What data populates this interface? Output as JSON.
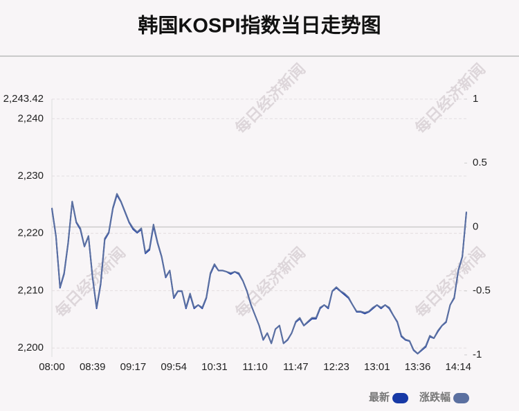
{
  "chart_data": {
    "type": "line",
    "title": "韩国KOSPI指数当日走势图",
    "watermark": "每日经济新闻",
    "categories": [
      "08:00",
      null,
      null,
      null,
      null,
      null,
      null,
      null,
      null,
      null,
      "08:39",
      null,
      null,
      null,
      null,
      null,
      null,
      null,
      null,
      null,
      "09:17",
      null,
      null,
      null,
      null,
      null,
      null,
      null,
      null,
      null,
      "09:54",
      null,
      null,
      null,
      null,
      null,
      null,
      null,
      null,
      null,
      "10:31",
      null,
      null,
      null,
      null,
      null,
      null,
      null,
      null,
      null,
      "11:10",
      null,
      null,
      null,
      null,
      null,
      null,
      null,
      null,
      null,
      "11:47",
      null,
      null,
      null,
      null,
      null,
      null,
      null,
      null,
      null,
      "12:23",
      null,
      null,
      null,
      null,
      null,
      null,
      null,
      null,
      null,
      "13:01",
      null,
      null,
      null,
      null,
      null,
      null,
      null,
      null,
      null,
      "13:36",
      null,
      null,
      null,
      null,
      null,
      null,
      null,
      null,
      null,
      "14:14",
      null,
      null
    ],
    "series": [
      {
        "name": "最新",
        "color": "#1739a6",
        "axis": "y",
        "values": [
          2224.3,
          2219.5,
          2210.5,
          2212.9,
          2218.3,
          2225.5,
          2221.9,
          2220.7,
          2217.7,
          2219.5,
          2212.3,
          2206.9,
          2211.1,
          2218.9,
          2220.1,
          2224.3,
          2226.7,
          2225.5,
          2223.7,
          2221.9,
          2220.7,
          2220.1,
          2220.7,
          2216.5,
          2217.1,
          2221.3,
          2218.3,
          2215.9,
          2212.3,
          2213.5,
          2208.7,
          2209.9,
          2209.9,
          2206.9,
          2209.3,
          2206.9,
          2207.5,
          2206.9,
          2208.7,
          2212.9,
          2214.5,
          2213.5,
          2213.5,
          2213.3,
          2212.9,
          2213.3,
          2212.9,
          2211.7,
          2209.9,
          2207.5,
          2205.7,
          2203.9,
          2201.4,
          2202.6,
          2200.8,
          2203.3,
          2203.9,
          2200.8,
          2201.4,
          2202.6,
          2204.5,
          2205.1,
          2203.9,
          2204.5,
          2205.1,
          2205.1,
          2206.9,
          2207.5,
          2206.9,
          2209.9,
          2210.5,
          2209.9,
          2209.3,
          2208.7,
          2207.5,
          2206.3,
          2206.3,
          2206.0,
          2206.3,
          2206.9,
          2207.5,
          2206.9,
          2207.5,
          2206.9,
          2205.7,
          2204.5,
          2202.0,
          2201.4,
          2201.2,
          2199.6,
          2199.0,
          2199.6,
          2200.2,
          2202.0,
          2201.7,
          2202.9,
          2203.9,
          2204.5,
          2207.5,
          2208.7,
          2213.5,
          2215.9,
          2223.7
        ]
      },
      {
        "name": "涨跌幅",
        "color": "#5b70a0",
        "axis": "y2",
        "values": [
          0.15,
          -0.07,
          -0.47,
          -0.36,
          -0.12,
          0.2,
          0.04,
          -0.01,
          -0.15,
          -0.07,
          -0.39,
          -0.63,
          -0.44,
          -0.09,
          -0.04,
          0.15,
          0.26,
          0.2,
          0.12,
          0.04,
          -0.01,
          -0.04,
          -0.01,
          -0.2,
          -0.17,
          0.02,
          -0.12,
          -0.23,
          -0.39,
          -0.34,
          -0.55,
          -0.5,
          -0.5,
          -0.63,
          -0.52,
          -0.63,
          -0.61,
          -0.63,
          -0.55,
          -0.36,
          -0.29,
          -0.34,
          -0.34,
          -0.35,
          -0.36,
          -0.35,
          -0.36,
          -0.42,
          -0.5,
          -0.61,
          -0.69,
          -0.77,
          -0.88,
          -0.83,
          -0.91,
          -0.8,
          -0.77,
          -0.91,
          -0.88,
          -0.83,
          -0.74,
          -0.71,
          -0.77,
          -0.74,
          -0.71,
          -0.71,
          -0.63,
          -0.61,
          -0.63,
          -0.5,
          -0.47,
          -0.5,
          -0.52,
          -0.55,
          -0.61,
          -0.66,
          -0.66,
          -0.67,
          -0.66,
          -0.63,
          -0.61,
          -0.63,
          -0.61,
          -0.63,
          -0.69,
          -0.74,
          -0.85,
          -0.88,
          -0.89,
          -0.96,
          -0.99,
          -0.96,
          -0.93,
          -0.85,
          -0.87,
          -0.81,
          -0.77,
          -0.74,
          -0.61,
          -0.55,
          -0.34,
          -0.23,
          0.12
        ]
      }
    ],
    "ylim": [
      2198.8,
      2243.42
    ],
    "yticks": [
      {
        "value": 2243.42,
        "label": "2,243.42"
      },
      {
        "value": 2240,
        "label": "2,240"
      },
      {
        "value": 2230,
        "label": "2,230"
      },
      {
        "value": 2220,
        "label": "2,220"
      },
      {
        "value": 2210,
        "label": "2,210"
      },
      {
        "value": 2200,
        "label": "2,200"
      }
    ],
    "y2lim": [
      -1,
      1
    ],
    "y2ticks": [
      1,
      0.5,
      0,
      -0.5,
      -1
    ],
    "grid": true
  }
}
